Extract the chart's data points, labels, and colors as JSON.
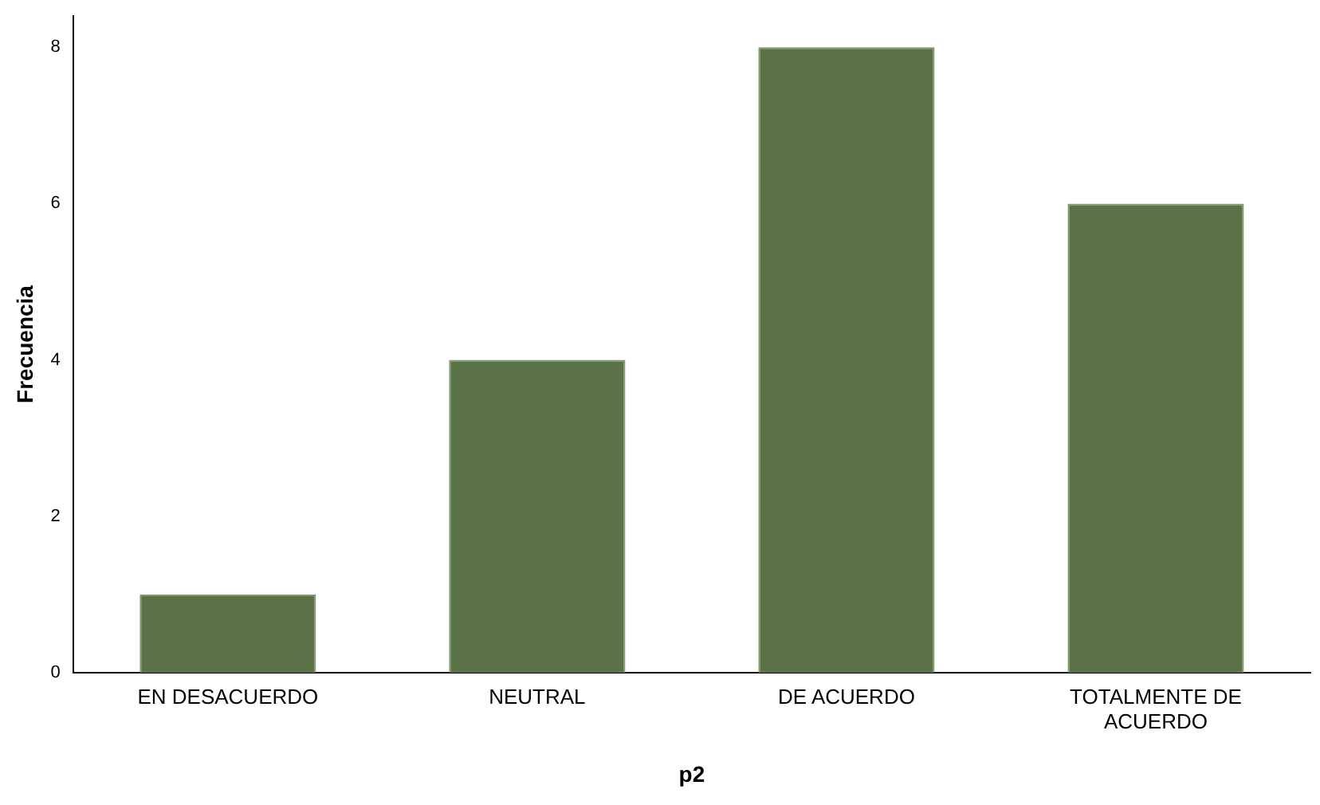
{
  "chart_data": {
    "type": "bar",
    "xlabel": "p2",
    "ylabel": "Frecuencia",
    "categories": [
      "EN DESACUERDO",
      "NEUTRAL",
      "DE ACUERDO",
      "TOTALMENTE DE ACUERDO"
    ],
    "values": [
      1,
      4,
      8,
      6
    ],
    "color": "#5b7148",
    "ylim": [
      0,
      8.4
    ],
    "yticks": [
      0,
      2,
      4,
      6,
      8
    ],
    "grid": false,
    "legend": false
  }
}
